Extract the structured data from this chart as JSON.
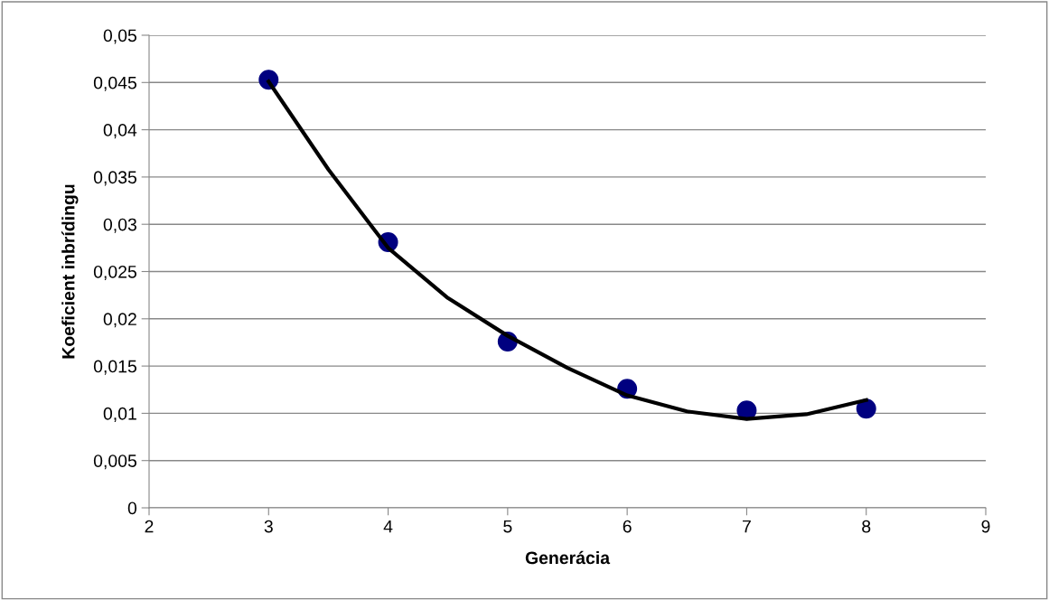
{
  "chart_data": {
    "type": "scatter",
    "xlabel": "Generácia",
    "ylabel": "Koeficient inbrídingu",
    "xlim": [
      2,
      9
    ],
    "xticks": [
      2,
      3,
      4,
      5,
      6,
      7,
      8,
      9
    ],
    "ylim": [
      0,
      0.05
    ],
    "yticks": [
      {
        "value": 0,
        "label": "0"
      },
      {
        "value": 0.005,
        "label": "0,005"
      },
      {
        "value": 0.01,
        "label": "0,01"
      },
      {
        "value": 0.015,
        "label": "0,015"
      },
      {
        "value": 0.02,
        "label": "0,02"
      },
      {
        "value": 0.025,
        "label": "0,025"
      },
      {
        "value": 0.03,
        "label": "0,03"
      },
      {
        "value": 0.035,
        "label": "0,035"
      },
      {
        "value": 0.04,
        "label": "0,04"
      },
      {
        "value": 0.045,
        "label": "0,045"
      },
      {
        "value": 0.05,
        "label": "0,05"
      }
    ],
    "grid": "y",
    "marker": "circle",
    "series": [
      {
        "color": "#000080",
        "x": [
          3,
          4,
          5,
          6,
          7,
          8
        ],
        "values": [
          0.0453,
          0.0281,
          0.0176,
          0.0126,
          0.0103,
          0.0105
        ]
      },
      {
        "type": "line",
        "color": "#000000",
        "marker": "none",
        "x": [
          3,
          3.5,
          4,
          4.5,
          5,
          5.5,
          6,
          6.5,
          7,
          7.5,
          8
        ],
        "values": [
          0.0451,
          0.0358,
          0.0275,
          0.0222,
          0.0182,
          0.0148,
          0.0119,
          0.0102,
          0.0094,
          0.0099,
          0.0114
        ]
      }
    ]
  }
}
